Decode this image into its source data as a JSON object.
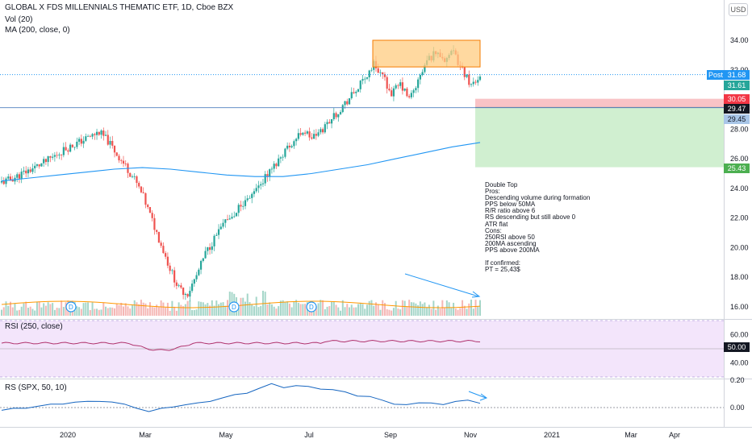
{
  "header": {
    "title": "GLOBAL X FDS MILLENNIALS THEMATIC ETF, 1D, Cboe BZX",
    "vol_label": "Vol (20)",
    "ma_label": "MA (200, close, 0)",
    "currency": "USD"
  },
  "annotation_note": "Double Top\nPros:\nDescending volume during formation\nPPS below 50MA\nR/R ratio above 6\nRS descending but still above 0\nATR flat\nCons:\n250RSI above 50\n200MA ascending\nPPS above 200MA\n\nIf confirmed:\nPT = 25,43$",
  "price_tags": {
    "post_label": "Post",
    "post_value": "31.68",
    "close_value": "31.61",
    "stop_value": "30.05",
    "entry_value": "29.47",
    "neckline_value": "29.45",
    "target_value": "25.43",
    "rsi_value": "50.00",
    "colors": {
      "post": "#2196f3",
      "close": "#26a69a",
      "stop": "#f23645",
      "entry": "#131722",
      "neckline": "#a9c6e8",
      "target": "#4caf50"
    }
  },
  "rsi_panel": {
    "title": "RSI (250, close)"
  },
  "rs_panel": {
    "title": "RS (SPX, 50, 10)"
  },
  "chart_data": [
    {
      "type": "candlestick",
      "title": "GLOBAL X FDS MILLENNIALS THEMATIC ETF, 1D, Cboe BZX",
      "x_ticks": [
        "2020",
        "Mar",
        "May",
        "Jul",
        "Sep",
        "Nov",
        "2021",
        "Mar",
        "Apr"
      ],
      "y_ticks": [
        16.0,
        18.0,
        20.0,
        22.0,
        24.0,
        26.0,
        28.0,
        30.0,
        32.0,
        34.0
      ],
      "ylim": [
        15.6,
        35.0
      ],
      "grid": false,
      "approx_close_series": [
        24.4,
        24.6,
        24.9,
        25.2,
        25.5,
        25.8,
        26.2,
        26.6,
        26.9,
        27.2,
        27.5,
        27.8,
        27.2,
        26.3,
        25.5,
        24.6,
        23.4,
        21.8,
        20.2,
        18.6,
        17.2,
        16.9,
        18.1,
        19.6,
        20.6,
        21.5,
        22.1,
        22.8,
        23.5,
        24.2,
        24.9,
        25.7,
        26.6,
        27.2,
        27.9,
        27.4,
        27.8,
        28.6,
        29.2,
        29.9,
        30.6,
        31.4,
        32.4,
        31.6,
        30.4,
        31.0,
        30.0,
        31.2,
        32.6,
        33.2,
        32.8,
        33.1,
        32.0,
        31.0,
        31.61
      ],
      "moving_average_200": [
        24.5,
        24.7,
        24.9,
        25.1,
        25.3,
        25.4,
        25.3,
        25.1,
        24.9,
        24.8,
        24.8,
        25.0,
        25.3,
        25.6,
        26.0,
        26.4,
        26.8,
        27.1
      ],
      "double_top_zone": [
        32.2,
        34.0
      ],
      "stop_level": 30.05,
      "entry_level": 29.47,
      "neckline_level": 29.45,
      "target_level": 25.43,
      "last_post_price": 31.68,
      "last_close": 31.61
    },
    {
      "type": "bar",
      "title": "Vol (20)",
      "dividend_markers": [
        "D",
        "D",
        "D"
      ]
    },
    {
      "type": "line",
      "title": "RSI (250, close)",
      "y_ticks": [
        40.0,
        50.0,
        60.0
      ],
      "ylim": [
        33,
        67
      ],
      "band": [
        30,
        70
      ],
      "last_value": 50.0
    },
    {
      "type": "line",
      "title": "RS (SPX, 50, 10)",
      "y_ticks": [
        0.0,
        0.2
      ],
      "ylim": [
        -0.1,
        0.26
      ],
      "zero_line": 0.0
    }
  ]
}
